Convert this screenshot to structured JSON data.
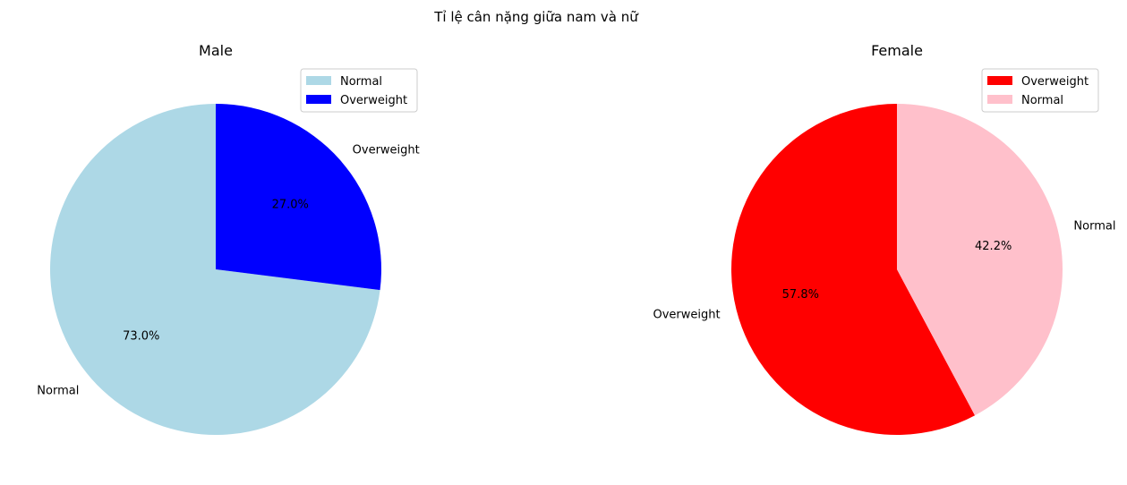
{
  "figure_title": "Tỉ lệ cân nặng giữa nam và nữ",
  "chart_data": [
    {
      "type": "pie",
      "title": "Male",
      "start_angle_deg": 90,
      "direction": "counterclockwise",
      "slices": [
        {
          "label": "Normal",
          "value": 73.0,
          "pct_label": "73.0%",
          "color": "#add8e6"
        },
        {
          "label": "Overweight",
          "value": 27.0,
          "pct_label": "27.0%",
          "color": "#0000ff"
        }
      ],
      "legend": {
        "placement": "upper-right",
        "entries": [
          "Normal",
          "Overweight"
        ]
      }
    },
    {
      "type": "pie",
      "title": "Female",
      "start_angle_deg": 90,
      "direction": "counterclockwise",
      "slices": [
        {
          "label": "Overweight",
          "value": 57.8,
          "pct_label": "57.8%",
          "color": "#ff0000"
        },
        {
          "label": "Normal",
          "value": 42.2,
          "pct_label": "42.2%",
          "color": "#ffc0cb"
        }
      ],
      "legend": {
        "placement": "upper-right",
        "entries": [
          "Overweight",
          "Normal"
        ]
      }
    }
  ]
}
